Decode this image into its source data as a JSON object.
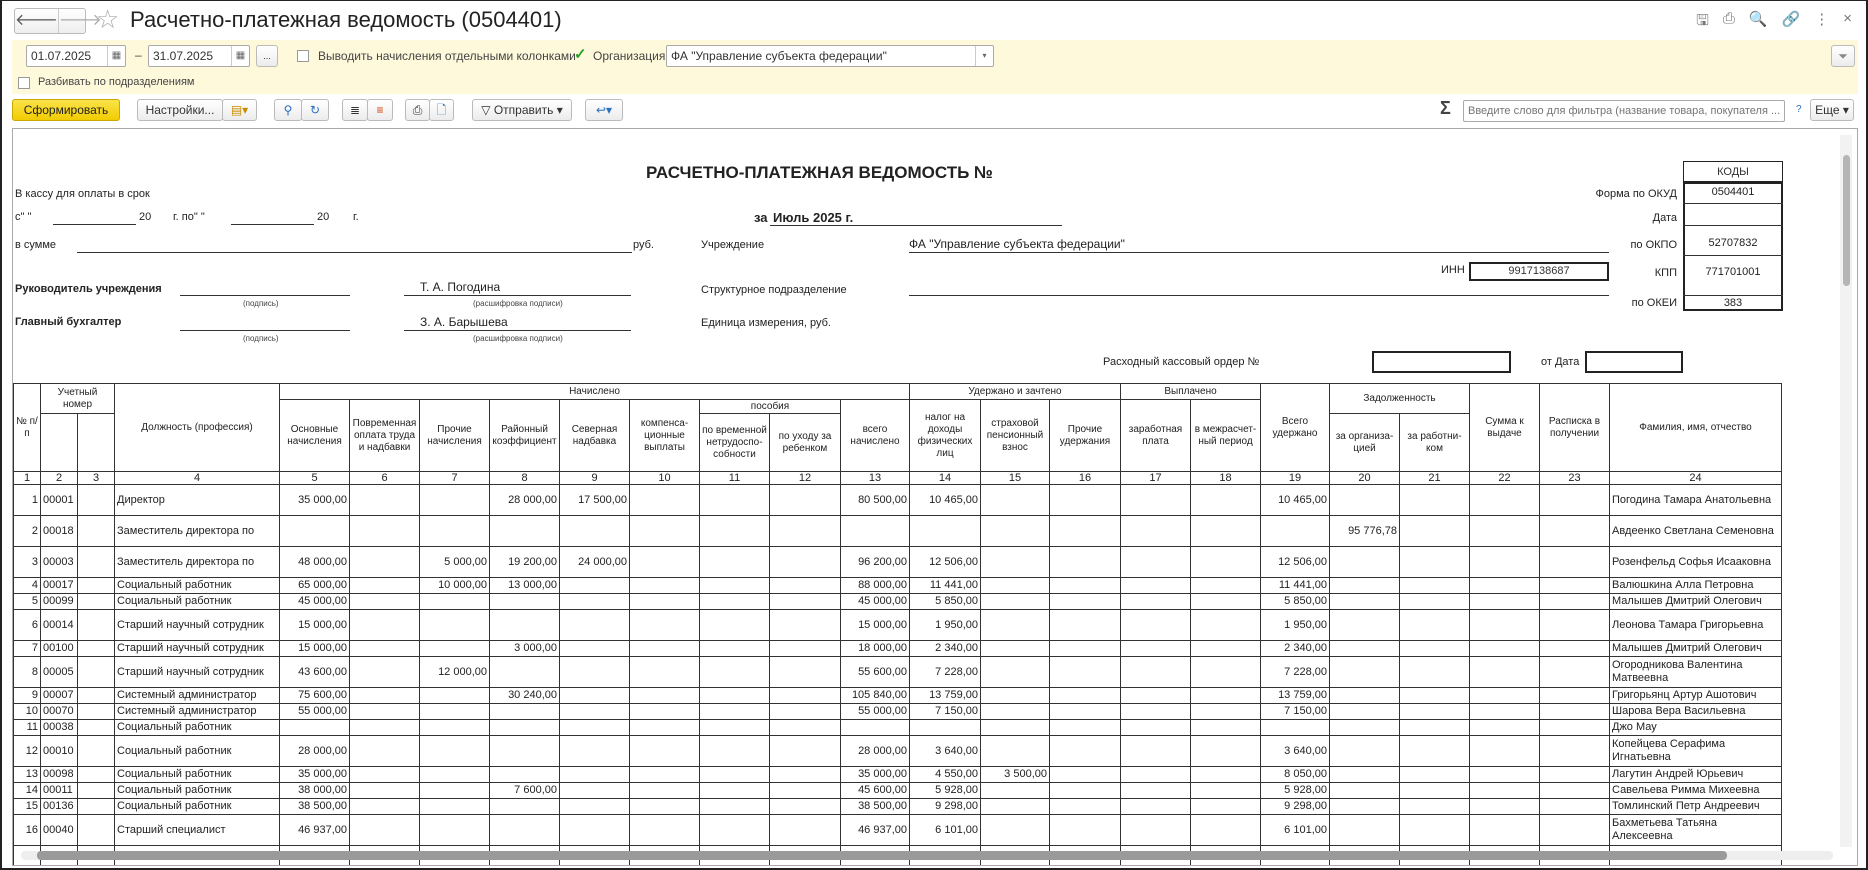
{
  "window": {
    "title": "Расчетно-платежная ведомость (0504401)",
    "back": "🡐",
    "forward": "🡒",
    "star": "☆",
    "icons": [
      "save-icon",
      "print-icon",
      "preview-icon",
      "link-icon",
      "more-icon",
      "close-icon"
    ],
    "icon_glyphs": [
      "🖫",
      "⎙",
      "🔍",
      "🔗",
      "⋮",
      "×"
    ]
  },
  "filters": {
    "date_from": "01.07.2025",
    "date_to": "31.07.2025",
    "dash": "–",
    "ellipsis": "...",
    "separate_columns_label": "Выводить начисления отдельными колонками",
    "separate_columns_checked": false,
    "org_label": "Организация:",
    "org_checked": true,
    "org_value": "ФА \"Управление субъекта федерации\"",
    "split_label": "Разбивать по подразделениям",
    "split_checked": false
  },
  "toolbar": {
    "generate": "Сформировать",
    "settings": "Настройки...",
    "send": "Отправить",
    "sigma": "Σ",
    "search_placeholder": "Введите слово для фильтра (название товара, покупателя ...",
    "help": "?",
    "more": "Еще"
  },
  "colors": {
    "panel": "#fff9dc",
    "primary_button": "#f5d000",
    "check": "#2aa12a"
  },
  "doc": {
    "title": "РАСЧЕТНО-ПЛАТЕЖНАЯ ВЕДОМОСТЬ №",
    "cash_line": "В кассу для оплаты в срок",
    "from": "с\"     \"",
    "year20": "20",
    "g_po": "г.  по\"     \"",
    "g": "г.",
    "for_label": "за",
    "period": "Июль 2025 г.",
    "sum_label": "в сумме",
    "rub": "руб.",
    "institution_label": "Учреждение",
    "institution": "ФА \"Управление субъекта федерации\"",
    "inn_label": "ИНН",
    "inn": "9917138687",
    "dept_label": "Структурное подразделение",
    "unit_label": "Единица измерения, руб.",
    "head_label": "Руководитель учреждения",
    "head_name": "Т. А. Погодина",
    "chief_label": "Главный бухгалтер",
    "chief_name": "З. А. Барышева",
    "sign_hint": "(подпись)",
    "decode_hint": "(расшифровка подписи)",
    "order_label": "Расходный кассовый ордер №",
    "order_date_label": "от Дата",
    "codes": {
      "header": "КОДЫ",
      "okud_label": "Форма по ОКУД",
      "okud": "0504401",
      "date_label": "Дата",
      "date": "",
      "okpo_label": "по ОКПО",
      "okpo": "52707832",
      "kpp_label": "КПП",
      "kpp": "771701001",
      "okei_label": "по ОКЕИ",
      "okei": "383"
    }
  },
  "table": {
    "h": {
      "num": "№ п/п",
      "acc": "Учетный номер",
      "pos": "Должность (профессия)",
      "accrued": "Начислено",
      "c5": "Основные начисления",
      "c6": "Повременная оплата труда и надбавки",
      "c7": "Прочие начисления",
      "c8": "Районный коэффициент",
      "c9": "Северная надбавка",
      "c10": "компенса-ционные выплаты",
      "benefits": "пособия",
      "c11": "по временной нетрудоспо-собности",
      "c12": "по уходу за ребенком",
      "c13": "всего начислено",
      "withheld": "Удержано и зачтено",
      "c14": "налог на доходы физических лиц",
      "c15": "страховой пенсионный взнос",
      "c16": "Прочие удержания",
      "paid": "Выплачено",
      "c17": "заработная плата",
      "c18": "в межрасчет-ный период",
      "c19": "Всего удержано",
      "debt": "Задолженность",
      "c20": "за организа-цией",
      "c21": "за работни-ком",
      "c22": "Сумма к выдаче",
      "c23": "Расписка в получении",
      "c24": "Фамилия, имя, отчество"
    },
    "col_numbers": [
      "1",
      "2",
      "3",
      "4",
      "5",
      "6",
      "7",
      "8",
      "9",
      "10",
      "11",
      "12",
      "13",
      "14",
      "15",
      "16",
      "17",
      "18",
      "19",
      "20",
      "21",
      "22",
      "23",
      "24"
    ],
    "rows": [
      [
        "1",
        "00001",
        "",
        "Директор",
        "35 000,00",
        "",
        "",
        "28 000,00",
        "17 500,00",
        "",
        "",
        "",
        "80 500,00",
        "10 465,00",
        "",
        "",
        "",
        "",
        "10 465,00",
        "",
        "",
        "",
        "",
        "Погодина Тамара Анатольевна"
      ],
      [
        "2",
        "00018",
        "",
        "Заместитель директора по",
        "",
        "",
        "",
        "",
        "",
        "",
        "",
        "",
        "",
        "",
        "",
        "",
        "",
        "",
        "",
        "95 776,78",
        "",
        "",
        "",
        "Авдеенко Светлана Семеновна"
      ],
      [
        "3",
        "00003",
        "",
        "Заместитель директора по",
        "48 000,00",
        "",
        "5 000,00",
        "19 200,00",
        "24 000,00",
        "",
        "",
        "",
        "96 200,00",
        "12 506,00",
        "",
        "",
        "",
        "",
        "12 506,00",
        "",
        "",
        "",
        "",
        "Розенфельд Софья Исааковна"
      ],
      [
        "4",
        "00017",
        "",
        "Социальный работник",
        "65 000,00",
        "",
        "10 000,00",
        "13 000,00",
        "",
        "",
        "",
        "",
        "88 000,00",
        "11 441,00",
        "",
        "",
        "",
        "",
        "11 441,00",
        "",
        "",
        "",
        "",
        "Валюшкина Алла Петровна"
      ],
      [
        "5",
        "00099",
        "",
        "Социальный работник",
        "45 000,00",
        "",
        "",
        "",
        "",
        "",
        "",
        "",
        "45 000,00",
        "5 850,00",
        "",
        "",
        "",
        "",
        "5 850,00",
        "",
        "",
        "",
        "",
        "Малышев Дмитрий Олегович"
      ],
      [
        "6",
        "00014",
        "",
        "Старший научный сотрудник",
        "15 000,00",
        "",
        "",
        "",
        "",
        "",
        "",
        "",
        "15 000,00",
        "1 950,00",
        "",
        "",
        "",
        "",
        "1 950,00",
        "",
        "",
        "",
        "",
        "Леонова Тамара Григорьевна"
      ],
      [
        "7",
        "00100",
        "",
        "Старший научный сотрудник",
        "15 000,00",
        "",
        "",
        "3 000,00",
        "",
        "",
        "",
        "",
        "18 000,00",
        "2 340,00",
        "",
        "",
        "",
        "",
        "2 340,00",
        "",
        "",
        "",
        "",
        "Малышев Дмитрий Олегович"
      ],
      [
        "8",
        "00005",
        "",
        "Старший научный сотрудник",
        "43 600,00",
        "",
        "12 000,00",
        "",
        "",
        "",
        "",
        "",
        "55 600,00",
        "7 228,00",
        "",
        "",
        "",
        "",
        "7 228,00",
        "",
        "",
        "",
        "",
        "Огородникова Валентина Матвеевна"
      ],
      [
        "9",
        "00007",
        "",
        "Системный администратор",
        "75 600,00",
        "",
        "",
        "30 240,00",
        "",
        "",
        "",
        "",
        "105 840,00",
        "13 759,00",
        "",
        "",
        "",
        "",
        "13 759,00",
        "",
        "",
        "",
        "",
        "Григорьянц Артур Ашотович"
      ],
      [
        "10",
        "00070",
        "",
        "Системный администратор",
        "55 000,00",
        "",
        "",
        "",
        "",
        "",
        "",
        "",
        "55 000,00",
        "7 150,00",
        "",
        "",
        "",
        "",
        "7 150,00",
        "",
        "",
        "",
        "",
        "Шарова Вера Васильевна"
      ],
      [
        "11",
        "00038",
        "",
        "Социальный работник",
        "",
        "",
        "",
        "",
        "",
        "",
        "",
        "",
        "",
        "",
        "",
        "",
        "",
        "",
        "",
        "",
        "",
        "",
        "",
        "Джо Мау"
      ],
      [
        "12",
        "00010",
        "",
        "Социальный работник",
        "28 000,00",
        "",
        "",
        "",
        "",
        "",
        "",
        "",
        "28 000,00",
        "3 640,00",
        "",
        "",
        "",
        "",
        "3 640,00",
        "",
        "",
        "",
        "",
        "Копейцева Серафима Игнатьевна"
      ],
      [
        "13",
        "00098",
        "",
        "Социальный работник",
        "35 000,00",
        "",
        "",
        "",
        "",
        "",
        "",
        "",
        "35 000,00",
        "4 550,00",
        "3 500,00",
        "",
        "",
        "",
        "8 050,00",
        "",
        "",
        "",
        "",
        "Лагутин Андрей Юрьевич"
      ],
      [
        "14",
        "00011",
        "",
        "Социальный работник",
        "38 000,00",
        "",
        "",
        "7 600,00",
        "",
        "",
        "",
        "",
        "45 600,00",
        "5 928,00",
        "",
        "",
        "",
        "",
        "5 928,00",
        "",
        "",
        "",
        "",
        "Савельева Римма Михеевна"
      ],
      [
        "15",
        "00136",
        "",
        "Социальный работник",
        "38 500,00",
        "",
        "",
        "",
        "",
        "",
        "",
        "",
        "38 500,00",
        "9 298,00",
        "",
        "",
        "",
        "",
        "9 298,00",
        "",
        "",
        "",
        "",
        "Томлинский Петр Андреевич"
      ],
      [
        "16",
        "00040",
        "",
        "Старший специалист",
        "46 937,00",
        "",
        "",
        "",
        "",
        "",
        "",
        "",
        "46 937,00",
        "6 101,00",
        "",
        "",
        "",
        "",
        "6 101,00",
        "",
        "",
        "",
        "",
        "Бахметьева Татьяна Алексеевна"
      ]
    ]
  }
}
